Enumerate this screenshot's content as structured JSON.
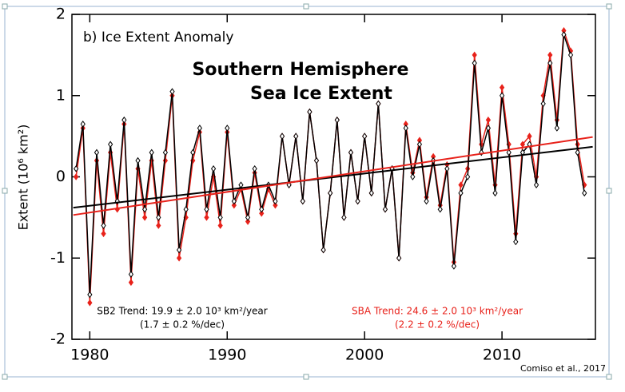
{
  "chart_data": {
    "type": "line",
    "panel_label": "b) Ice Extent Anomaly",
    "title": [
      "Southern Hemisphere",
      "Sea Ice Extent"
    ],
    "ylabel": "Extent (10⁶ km²)",
    "x": [
      1979.0,
      1979.5,
      1980.0,
      1980.5,
      1981.0,
      1981.5,
      1982.0,
      1982.5,
      1983.0,
      1983.5,
      1984.0,
      1984.5,
      1985.0,
      1985.5,
      1986.0,
      1986.5,
      1987.0,
      1987.5,
      1988.0,
      1988.5,
      1989.0,
      1989.5,
      1990.0,
      1990.5,
      1991.0,
      1991.5,
      1992.0,
      1992.5,
      1993.0,
      1993.5,
      1994.0,
      1994.5,
      1995.0,
      1995.5,
      1996.0,
      1996.5,
      1997.0,
      1997.5,
      1998.0,
      1998.5,
      1999.0,
      1999.5,
      2000.0,
      2000.5,
      2001.0,
      2001.5,
      2002.0,
      2002.5,
      2003.0,
      2003.5,
      2004.0,
      2004.5,
      2005.0,
      2005.5,
      2006.0,
      2006.5,
      2007.0,
      2007.5,
      2008.0,
      2008.5,
      2009.0,
      2009.5,
      2010.0,
      2010.5,
      2011.0,
      2011.5,
      2012.0,
      2012.5,
      2013.0,
      2013.5,
      2014.0,
      2014.5,
      2015.0,
      2015.5,
      2016.0
    ],
    "series": [
      {
        "color": "#e8221b",
        "values": [
          0.0,
          0.6,
          -1.55,
          0.2,
          -0.7,
          0.3,
          -0.4,
          0.65,
          -1.3,
          0.1,
          -0.5,
          0.2,
          -0.6,
          0.2,
          1.0,
          -1.0,
          -0.5,
          0.2,
          0.55,
          -0.5,
          0.0,
          -0.6,
          0.55,
          -0.35,
          -0.15,
          -0.55,
          0.05,
          -0.45,
          -0.15,
          -0.35,
          0.5,
          -0.1,
          0.5,
          -0.3,
          0.8,
          0.2,
          -0.9,
          -0.2,
          0.7,
          -0.5,
          0.3,
          -0.3,
          0.5,
          -0.2,
          0.9,
          -0.4,
          0.1,
          -1.0,
          0.65,
          0.05,
          0.45,
          -0.25,
          0.25,
          -0.35,
          0.15,
          -1.05,
          -0.1,
          0.1,
          1.5,
          0.4,
          0.7,
          -0.1,
          1.1,
          0.4,
          -0.7,
          0.4,
          0.5,
          0.0,
          1.0,
          1.5,
          0.7,
          1.8,
          1.55,
          0.4,
          -0.1
        ]
      },
      {
        "color": "#000000",
        "values": [
          0.1,
          0.65,
          -1.45,
          0.3,
          -0.6,
          0.4,
          -0.3,
          0.7,
          -1.2,
          0.2,
          -0.4,
          0.3,
          -0.5,
          0.3,
          1.05,
          -0.9,
          -0.4,
          0.3,
          0.6,
          -0.4,
          0.1,
          -0.5,
          0.6,
          -0.3,
          -0.1,
          -0.5,
          0.1,
          -0.4,
          -0.1,
          -0.3,
          0.5,
          -0.1,
          0.5,
          -0.3,
          0.8,
          0.2,
          -0.9,
          -0.2,
          0.7,
          -0.5,
          0.3,
          -0.3,
          0.5,
          -0.2,
          0.9,
          -0.4,
          0.1,
          -1.0,
          0.6,
          0.0,
          0.4,
          -0.3,
          0.2,
          -0.4,
          0.1,
          -1.1,
          -0.2,
          0.0,
          1.4,
          0.3,
          0.6,
          -0.2,
          1.0,
          0.3,
          -0.8,
          0.3,
          0.4,
          -0.1,
          0.9,
          1.4,
          0.6,
          1.75,
          1.5,
          0.3,
          -0.2
        ]
      }
    ],
    "trends": [
      {
        "color": "#000000",
        "x": [
          1978.8,
          2016.6
        ],
        "values": [
          -0.38,
          0.37
        ]
      },
      {
        "color": "#e8221b",
        "x": [
          1978.8,
          2016.6
        ],
        "values": [
          -0.47,
          0.49
        ]
      }
    ],
    "annotations": [
      {
        "color": "#000000",
        "lines": [
          "SB2 Trend: 19.9 ± 2.0 10³ km²/year",
          "(1.7 ± 0.2 %/dec)"
        ]
      },
      {
        "color": "#e8221b",
        "lines": [
          "SBA Trend: 24.6 ± 2.0 10³ km²/year",
          "(2.2 ± 0.2 %/dec)"
        ]
      }
    ],
    "credit": "Comiso et al., 2017",
    "xlim": [
      1978.7,
      2016.8
    ],
    "xticks": [
      1980,
      1990,
      2000,
      2010
    ],
    "ylim": [
      -2,
      2
    ],
    "yticks": [
      -2,
      -1,
      0,
      1,
      2
    ]
  }
}
